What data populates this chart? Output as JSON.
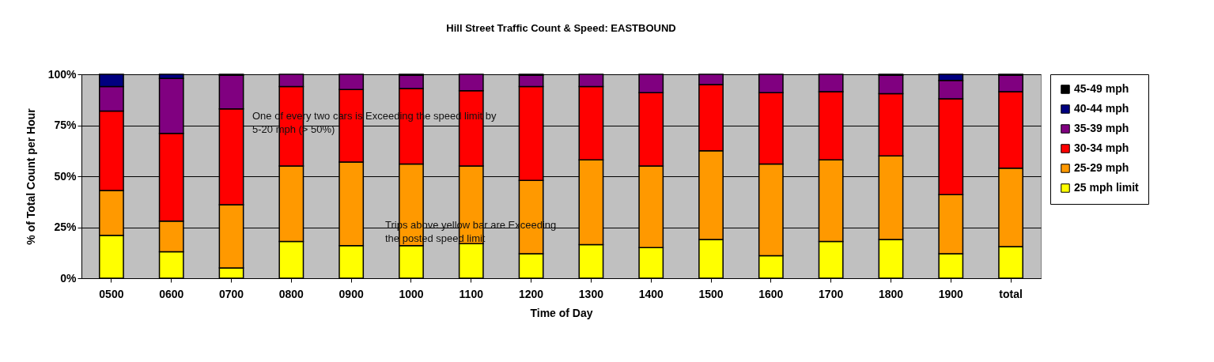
{
  "chart_data": {
    "type": "bar",
    "stacked": true,
    "title": "Hill Street Traffic Count & Speed: EASTBOUND",
    "xlabel": "Time of Day",
    "ylabel": "% of Total Count per Hour",
    "categories": [
      "0500",
      "0600",
      "0700",
      "0800",
      "0900",
      "1000",
      "1100",
      "1200",
      "1300",
      "1400",
      "1500",
      "1600",
      "1700",
      "1800",
      "1900",
      "total"
    ],
    "series": [
      {
        "name": "25 mph limit",
        "color": "#ffff00",
        "values": [
          21,
          13,
          5,
          18,
          16,
          16,
          17,
          12,
          16.5,
          15,
          19,
          11,
          18,
          19,
          12,
          15.5
        ]
      },
      {
        "name": "25-29 mph",
        "color": "#ff9900",
        "values": [
          22,
          15,
          31,
          37,
          41,
          40,
          38,
          36,
          41.5,
          40,
          43.5,
          45,
          40,
          41,
          29,
          38.5
        ]
      },
      {
        "name": "30-34 mph",
        "color": "#ff0000",
        "values": [
          39,
          43,
          47,
          39,
          35.5,
          37,
          37,
          46,
          36,
          36,
          32.5,
          35,
          33.5,
          30.5,
          47,
          37.5
        ]
      },
      {
        "name": "35-39 mph",
        "color": "#800080",
        "values": [
          12,
          27,
          16.5,
          6,
          7.5,
          6.5,
          8,
          5.5,
          6,
          9,
          5,
          9,
          8.5,
          9,
          9,
          8
        ]
      },
      {
        "name": "40-44 mph",
        "color": "#000080",
        "values": [
          6,
          2,
          0,
          0,
          0,
          0,
          0,
          0,
          0,
          0,
          0,
          0,
          0,
          0,
          3,
          0
        ]
      },
      {
        "name": "45-49 mph",
        "color": "#000000",
        "values": [
          0,
          0,
          0.5,
          0,
          0,
          0.5,
          0,
          0.5,
          0,
          0,
          0,
          0,
          0,
          0.5,
          0,
          0.5
        ]
      }
    ],
    "ylim": [
      0,
      100
    ],
    "yticks": [
      {
        "value": 0,
        "label": "0%"
      },
      {
        "value": 25,
        "label": "25%"
      },
      {
        "value": 50,
        "label": "50%"
      },
      {
        "value": 75,
        "label": "75%"
      },
      {
        "value": 100,
        "label": "100%"
      }
    ],
    "grid": "y",
    "legend": "right",
    "annotations": [
      "One of every two cars is Exceeding the speed limit by 5-20 mph (> 50%)",
      "Trips above yellow bar are Exceeding the posted speed limit"
    ]
  }
}
